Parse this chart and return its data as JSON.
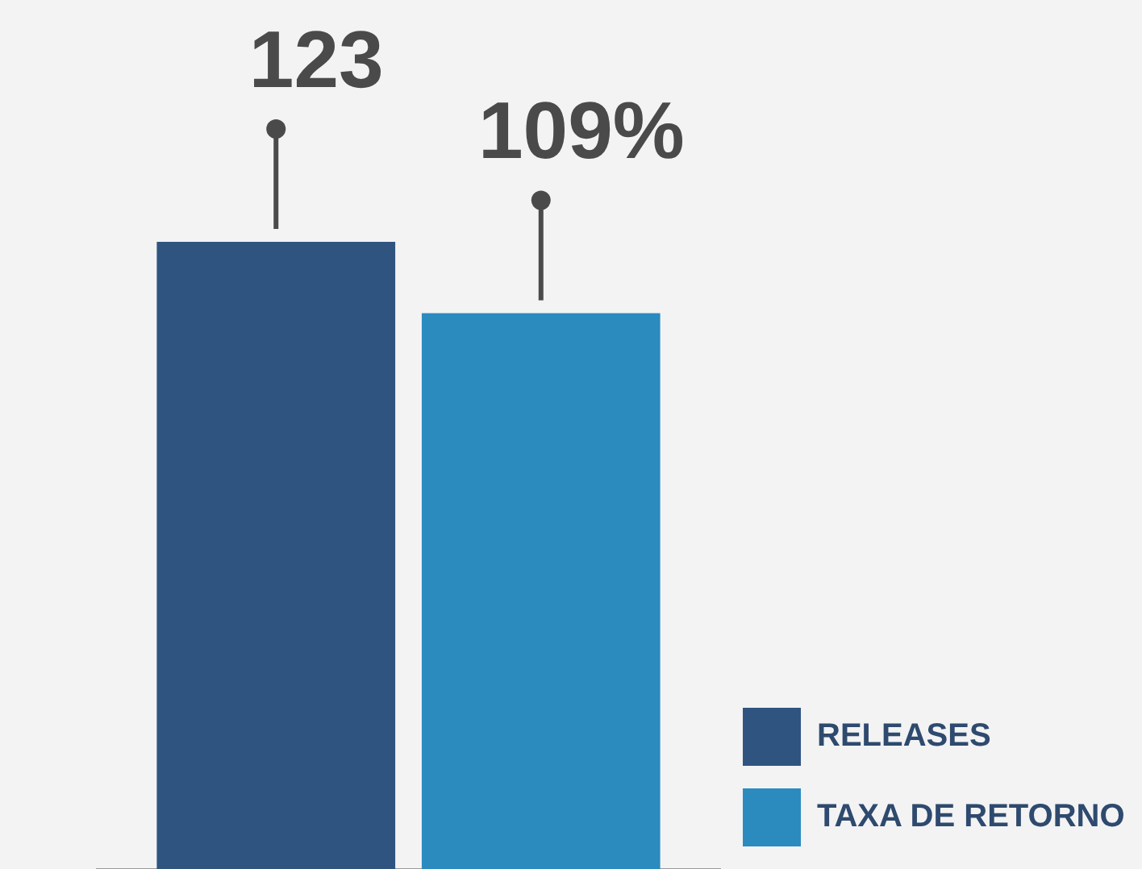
{
  "chart_data": {
    "type": "bar",
    "categories": [
      null
    ],
    "series": [
      {
        "name": "RELEASES",
        "color": "#2f5480",
        "values": [
          123
        ],
        "value_labels": [
          "123"
        ]
      },
      {
        "name": "TAXA DE RETORNO",
        "color": "#2b8bbf",
        "values": [
          109
        ],
        "value_labels": [
          "109%"
        ]
      }
    ],
    "legend": "bottom right",
    "grid": false
  }
}
